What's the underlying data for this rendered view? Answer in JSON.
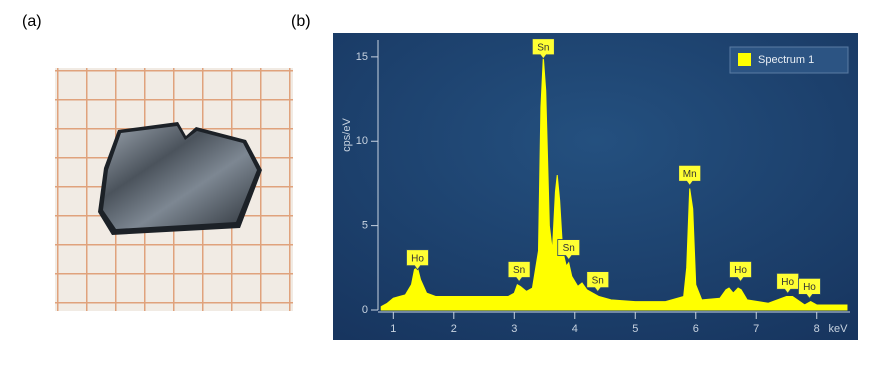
{
  "panel_labels": [
    "(a)",
    "(b)"
  ],
  "chart_data": {
    "type": "area",
    "y_label": "cps/eV",
    "x_label": "keV",
    "legend": "top-right",
    "series": [
      {
        "name": "Spectrum 1",
        "color": "#ffff00",
        "x": [
          0.8,
          0.9,
          1.0,
          1.1,
          1.2,
          1.3,
          1.35,
          1.4,
          1.45,
          1.55,
          1.7,
          2.0,
          2.5,
          2.9,
          3.0,
          3.05,
          3.1,
          3.2,
          3.3,
          3.4,
          3.44,
          3.48,
          3.52,
          3.58,
          3.63,
          3.68,
          3.71,
          3.75,
          3.8,
          3.86,
          3.9,
          3.95,
          4.05,
          4.12,
          4.2,
          4.3,
          4.4,
          4.6,
          5.0,
          5.5,
          5.8,
          5.85,
          5.9,
          5.95,
          6.0,
          6.1,
          6.4,
          6.5,
          6.55,
          6.62,
          6.7,
          6.75,
          6.85,
          7.2,
          7.5,
          7.6,
          7.8,
          7.9,
          8.0,
          8.5
        ],
        "values": [
          0.2,
          0.4,
          0.7,
          0.8,
          0.9,
          1.5,
          2.4,
          2.5,
          1.8,
          1.0,
          0.8,
          0.8,
          0.8,
          0.8,
          1.0,
          1.5,
          1.4,
          1.1,
          1.3,
          3.5,
          12,
          15,
          13,
          5,
          3.5,
          7,
          8,
          6.5,
          3.5,
          2.6,
          2.8,
          2.0,
          1.4,
          1.6,
          1.2,
          1.0,
          0.8,
          0.6,
          0.5,
          0.5,
          0.8,
          2.5,
          7.2,
          6.0,
          1.5,
          0.6,
          0.7,
          1.2,
          1.3,
          1.0,
          1.3,
          1.2,
          0.6,
          0.4,
          0.8,
          0.8,
          0.3,
          0.5,
          0.3,
          0.3
        ]
      }
    ],
    "annotations": [
      {
        "text": "Ho",
        "x": 1.4,
        "y": 3.1
      },
      {
        "text": "Sn",
        "x": 3.08,
        "y": 2.4
      },
      {
        "text": "Sn",
        "x": 3.48,
        "y": 15.6
      },
      {
        "text": "Sn",
        "x": 3.9,
        "y": 3.7
      },
      {
        "text": "Sn",
        "x": 4.38,
        "y": 1.8
      },
      {
        "text": "Mn",
        "x": 5.9,
        "y": 8.1
      },
      {
        "text": "Ho",
        "x": 6.74,
        "y": 2.4
      },
      {
        "text": "Ho",
        "x": 7.52,
        "y": 1.7
      },
      {
        "text": "Ho",
        "x": 7.88,
        "y": 1.4
      }
    ],
    "xlim": [
      0.78,
      8.55
    ],
    "ylim": [
      0,
      16
    ],
    "xticks": [
      1,
      2,
      3,
      4,
      5,
      6,
      7,
      8
    ],
    "yticks": [
      0,
      5,
      10,
      15
    ]
  }
}
